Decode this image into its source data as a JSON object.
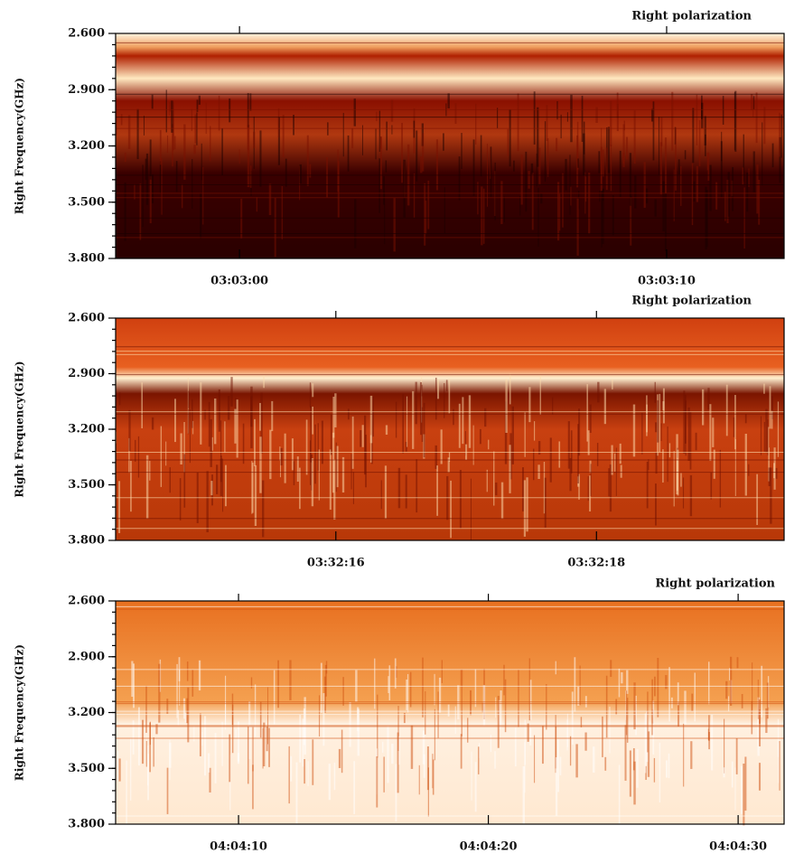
{
  "chart_data": [
    {
      "type": "spectrogram",
      "title": "Right polarization",
      "ylabel": "Right Frequency(GHz)",
      "ylim": [
        2.6,
        3.8
      ],
      "yticks": [
        {
          "value": 2.6,
          "label": "2.600"
        },
        {
          "value": 2.9,
          "label": "2.900"
        },
        {
          "value": 3.2,
          "label": "3.200"
        },
        {
          "value": 3.5,
          "label": "3.500"
        },
        {
          "value": 3.8,
          "label": "3.800"
        }
      ],
      "xlim": [
        10977.1,
        10992.75
      ],
      "xticks": [
        {
          "value": 10980,
          "label": "03:03:00"
        },
        {
          "value": 10990,
          "label": "03:03:10"
        }
      ]
    },
    {
      "type": "spectrogram",
      "title": "Right polarization",
      "ylabel": "Right Frequency(GHz)",
      "ylim": [
        2.6,
        3.8
      ],
      "yticks": [
        {
          "value": 2.6,
          "label": "2.600"
        },
        {
          "value": 2.9,
          "label": "2.900"
        },
        {
          "value": 3.2,
          "label": "3.200"
        },
        {
          "value": 3.5,
          "label": "3.500"
        },
        {
          "value": 3.8,
          "label": "3.800"
        }
      ],
      "xlim": [
        12734.31,
        12739.44
      ],
      "xticks": [
        {
          "value": 12736,
          "label": "03:32:16"
        },
        {
          "value": 12738,
          "label": "03:32:18"
        }
      ]
    },
    {
      "type": "spectrogram",
      "title": "Right polarization",
      "ylabel": "Right Frequency(GHz)",
      "ylim": [
        2.6,
        3.8
      ],
      "yticks": [
        {
          "value": 2.6,
          "label": "2.600"
        },
        {
          "value": 2.9,
          "label": "2.900"
        },
        {
          "value": 3.2,
          "label": "3.200"
        },
        {
          "value": 3.5,
          "label": "3.500"
        },
        {
          "value": 3.8,
          "label": "3.800"
        }
      ],
      "xlim": [
        14645.08,
        14671.84
      ],
      "xticks": [
        {
          "value": 14650,
          "label": "04:04:10"
        },
        {
          "value": 14660,
          "label": "04:04:20"
        },
        {
          "value": 14670,
          "label": "04:04:30"
        }
      ]
    }
  ]
}
